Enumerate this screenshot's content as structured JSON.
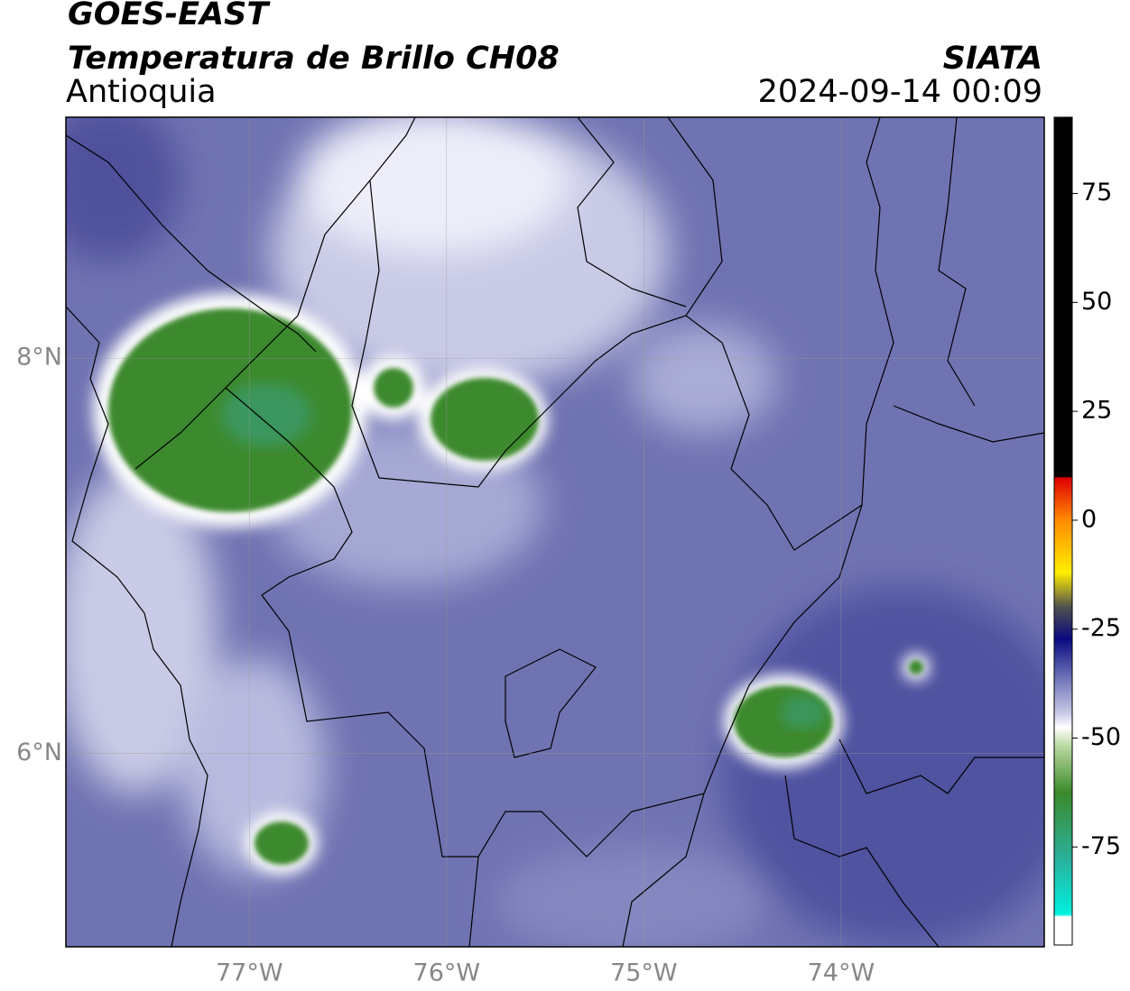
{
  "header": {
    "satellite": "GOES-EAST",
    "product": "Temperatura de Brillo CH08",
    "region": "Antioquia",
    "source": "SIATA",
    "datetime": "2024-09-14 00:09"
  },
  "map": {
    "lonlim": [
      -77.93,
      -72.97
    ],
    "latlim": [
      5.02,
      9.22
    ],
    "lonticks": [
      {
        "value": -77,
        "label": "77°W"
      },
      {
        "value": -76,
        "label": "76°W"
      },
      {
        "value": -75,
        "label": "75°W"
      },
      {
        "value": -74,
        "label": "74°W"
      }
    ],
    "latticks": [
      {
        "value": 8,
        "label": "8°N"
      },
      {
        "value": 6,
        "label": "6°N"
      }
    ],
    "grid": true
  },
  "colorbar": {
    "lim": [
      -97.5,
      92.5
    ],
    "ticks": [
      75,
      50,
      25,
      0,
      -25,
      -50,
      -75
    ]
  }
}
